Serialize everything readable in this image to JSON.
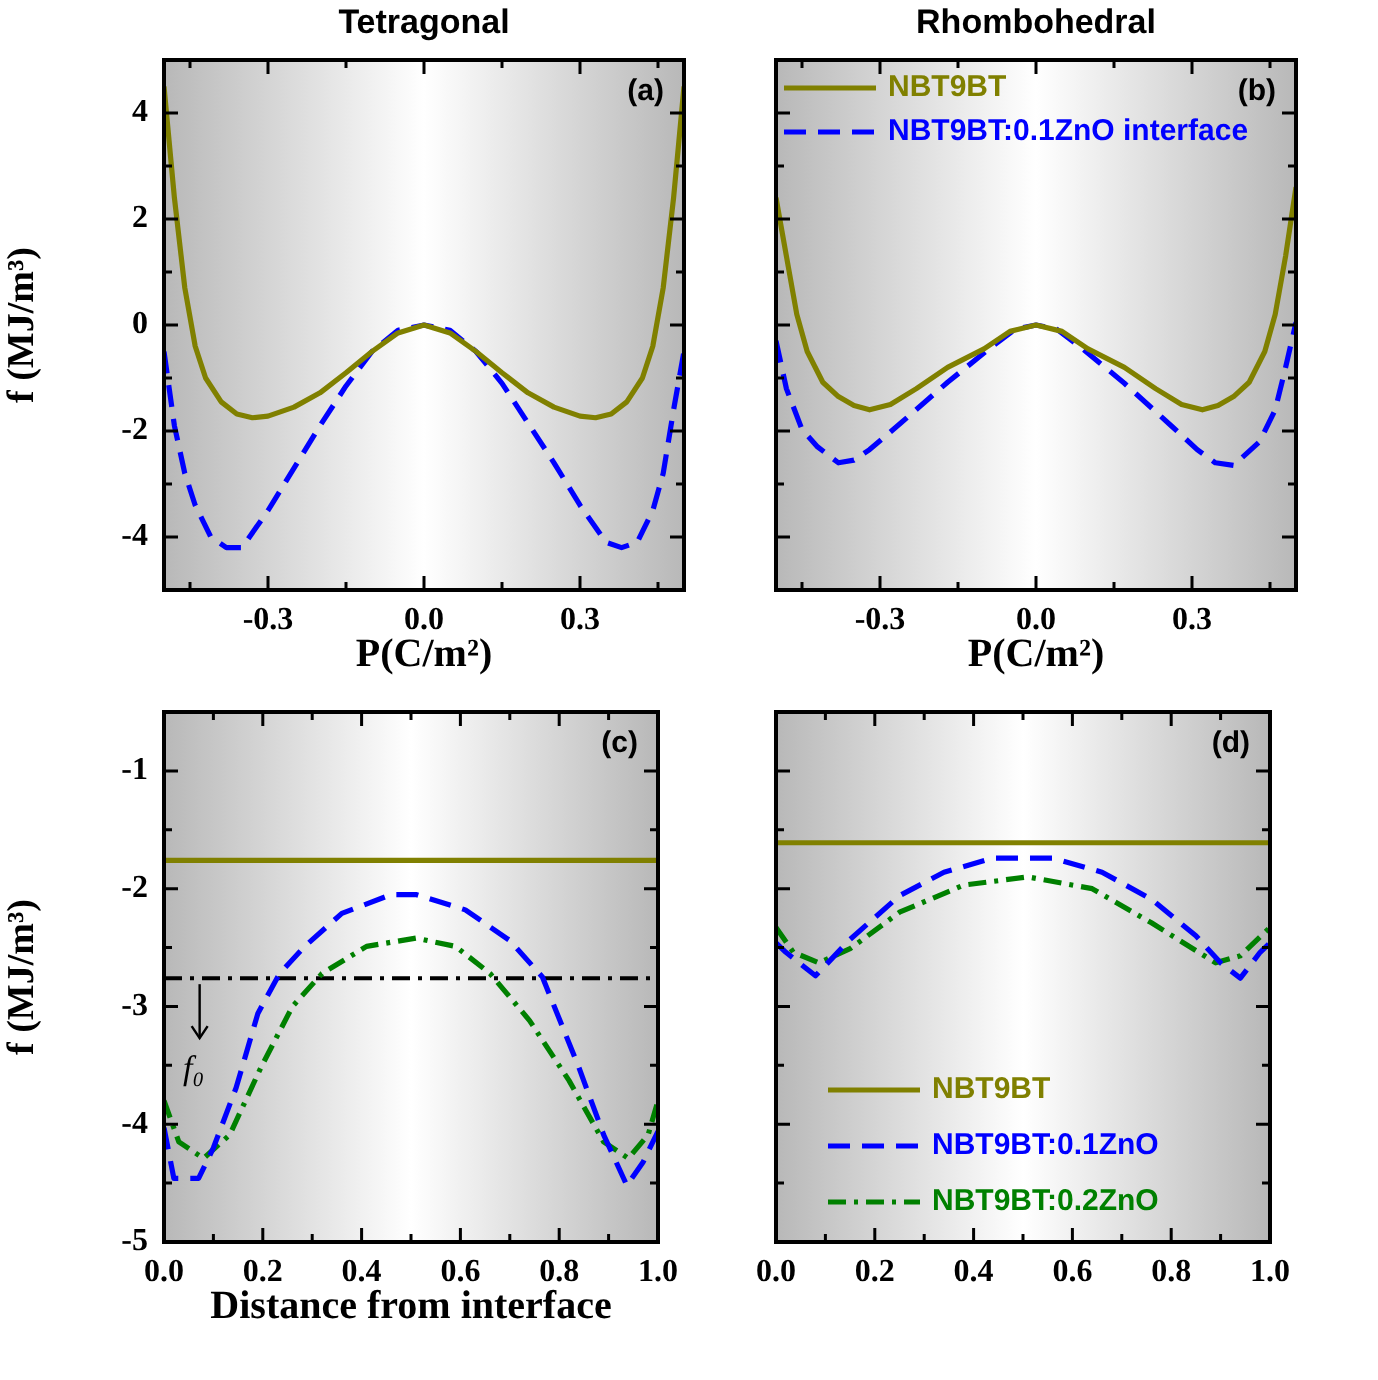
{
  "chart_data": [
    {
      "type": "line",
      "title": "Tetragonal",
      "xlabel": "P(C/m²)",
      "ylabel": "f (MJ/m³)",
      "annotations": [
        "(a)"
      ],
      "xlim": [
        -0.5,
        0.5
      ],
      "ylim": [
        -5,
        5
      ],
      "xticks": [
        {
          "value": -0.45,
          "label": null
        },
        -0.3,
        {
          "value": -0.15,
          "label": null
        },
        {
          "value": 0,
          "label": "0.0"
        },
        {
          "value": 0.15,
          "label": null
        },
        0.3,
        {
          "value": 0.45,
          "label": null
        }
      ],
      "yticks": [
        -4,
        {
          "value": -3,
          "label": null
        },
        -2,
        {
          "value": -1,
          "label": null
        },
        0,
        {
          "value": 1,
          "label": null
        },
        2,
        {
          "value": 3,
          "label": null
        },
        4
      ],
      "grid": false,
      "series": [
        {
          "color": "#808000",
          "line_style": "solid",
          "x": [
            -0.5,
            -0.48,
            -0.46,
            -0.44,
            -0.42,
            -0.39,
            -0.36,
            -0.33,
            -0.3,
            -0.25,
            -0.2,
            -0.15,
            -0.1,
            -0.05,
            0,
            0.05,
            0.1,
            0.15,
            0.2,
            0.25,
            0.3,
            0.33,
            0.36,
            0.39,
            0.42,
            0.44,
            0.46,
            0.48,
            0.5
          ],
          "values": [
            4.5,
            2.4,
            0.7,
            -0.4,
            -1.0,
            -1.45,
            -1.68,
            -1.75,
            -1.72,
            -1.55,
            -1.28,
            -0.9,
            -0.5,
            -0.15,
            0,
            -0.15,
            -0.5,
            -0.9,
            -1.28,
            -1.55,
            -1.72,
            -1.75,
            -1.68,
            -1.45,
            -1.0,
            -0.4,
            0.7,
            2.4,
            4.5
          ]
        },
        {
          "color": "#0000ff",
          "line_style": "dashed",
          "x": [
            -0.5,
            -0.48,
            -0.46,
            -0.44,
            -0.41,
            -0.38,
            -0.35,
            -0.3,
            -0.25,
            -0.2,
            -0.15,
            -0.1,
            -0.05,
            0,
            0.05,
            0.1,
            0.15,
            0.2,
            0.25,
            0.3,
            0.35,
            0.38,
            0.41,
            0.44,
            0.46,
            0.48,
            0.5
          ],
          "values": [
            -0.5,
            -1.9,
            -2.8,
            -3.4,
            -4.0,
            -4.2,
            -4.2,
            -3.5,
            -2.7,
            -1.9,
            -1.15,
            -0.5,
            -0.1,
            0,
            -0.1,
            -0.5,
            -1.1,
            -1.85,
            -2.6,
            -3.4,
            -4.1,
            -4.2,
            -4.1,
            -3.5,
            -2.8,
            -1.6,
            -0.5
          ]
        }
      ]
    },
    {
      "type": "line",
      "title": "Rhombohedral",
      "xlabel": "P(C/m²)",
      "annotations": [
        "(b)"
      ],
      "legend": "top left",
      "tick_labels": "x",
      "xlim": [
        -0.5,
        0.5
      ],
      "ylim": [
        -5,
        5
      ],
      "xticks": [
        {
          "value": -0.45,
          "label": null
        },
        -0.3,
        {
          "value": -0.15,
          "label": null
        },
        {
          "value": 0,
          "label": "0.0"
        },
        {
          "value": 0.15,
          "label": null
        },
        0.3,
        {
          "value": 0.45,
          "label": null
        }
      ],
      "yticks": [
        -4,
        {
          "value": -3,
          "label": null
        },
        -2,
        {
          "value": -1,
          "label": null
        },
        0,
        {
          "value": 1,
          "label": null
        },
        2,
        {
          "value": 3,
          "label": null
        },
        4
      ],
      "grid": false,
      "series": [
        {
          "name": "NBT9BT",
          "color": "#808000",
          "line_style": "solid",
          "x": [
            -0.5,
            -0.48,
            -0.46,
            -0.44,
            -0.41,
            -0.38,
            -0.35,
            -0.32,
            -0.28,
            -0.23,
            -0.17,
            -0.1,
            -0.05,
            0,
            0.05,
            0.1,
            0.17,
            0.23,
            0.28,
            0.32,
            0.35,
            0.38,
            0.41,
            0.44,
            0.46,
            0.48,
            0.5
          ],
          "values": [
            2.4,
            1.3,
            0.2,
            -0.5,
            -1.08,
            -1.35,
            -1.52,
            -1.6,
            -1.5,
            -1.2,
            -0.8,
            -0.45,
            -0.12,
            0,
            -0.12,
            -0.45,
            -0.8,
            -1.2,
            -1.5,
            -1.6,
            -1.52,
            -1.35,
            -1.08,
            -0.5,
            0.2,
            1.3,
            2.6
          ]
        },
        {
          "name": "NBT9BT:0.1ZnO interface",
          "color": "#0000ff",
          "line_style": "dashed",
          "x": [
            -0.5,
            -0.48,
            -0.45,
            -0.42,
            -0.38,
            -0.35,
            -0.32,
            -0.26,
            -0.17,
            -0.09,
            -0.04,
            0,
            0.04,
            0.09,
            0.17,
            0.26,
            0.31,
            0.345,
            0.38,
            0.43,
            0.46,
            0.48,
            0.5
          ],
          "values": [
            -0.3,
            -1.2,
            -1.97,
            -2.3,
            -2.6,
            -2.55,
            -2.35,
            -1.85,
            -1.08,
            -0.45,
            -0.08,
            0,
            -0.08,
            -0.45,
            -1.1,
            -1.9,
            -2.35,
            -2.6,
            -2.65,
            -2.2,
            -1.6,
            -0.8,
            0.05
          ]
        }
      ]
    },
    {
      "type": "line",
      "xlabel": "Distance from interface",
      "ylabel": "f (MJ/m³)",
      "annotations": [
        "(c)",
        {
          "text": "f₀",
          "x": 0.06,
          "y": -2.76
        }
      ],
      "xlim": [
        0,
        1
      ],
      "ylim": [
        -5,
        -0.5
      ],
      "xticks": [
        {
          "value": 0,
          "label": "0.0"
        },
        {
          "value": 0.1,
          "label": null
        },
        0.2,
        {
          "value": 0.3,
          "label": null
        },
        0.4,
        {
          "value": 0.5,
          "label": null
        },
        0.6,
        {
          "value": 0.7,
          "label": null
        },
        0.8,
        {
          "value": 0.9,
          "label": null
        },
        {
          "value": 1,
          "label": "1.0"
        }
      ],
      "yticks": [
        -5,
        {
          "value": -4.5,
          "label": null
        },
        -4,
        {
          "value": -3.5,
          "label": null
        },
        -3,
        {
          "value": -2.5,
          "label": null
        },
        -2,
        {
          "value": -1.5,
          "label": null
        },
        -1
      ],
      "grid": false,
      "ref_lines": [
        {
          "axis": "y",
          "value": -2.76,
          "color": "#000000",
          "line_style": "dashdot"
        }
      ],
      "series": [
        {
          "color": "#808000",
          "line_style": "solid",
          "x": [
            0,
            1
          ],
          "values": [
            -1.76,
            -1.76
          ]
        },
        {
          "color": "#0000ff",
          "line_style": "dashed",
          "x": [
            0,
            0.02,
            0.07,
            0.1,
            0.146,
            0.19,
            0.234,
            0.285,
            0.36,
            0.46,
            0.51,
            0.61,
            0.7,
            0.766,
            0.84,
            0.89,
            0.937,
            0.97,
            1
          ],
          "values": [
            -4.03,
            -4.46,
            -4.46,
            -4.2,
            -3.69,
            -3.06,
            -2.72,
            -2.49,
            -2.21,
            -2.05,
            -2.05,
            -2.18,
            -2.44,
            -2.75,
            -3.52,
            -4.09,
            -4.52,
            -4.32,
            -4.06
          ]
        },
        {
          "color": "#008000",
          "line_style": "dashdot",
          "x": [
            0,
            0.03,
            0.08,
            0.133,
            0.196,
            0.26,
            0.32,
            0.41,
            0.51,
            0.59,
            0.66,
            0.74,
            0.82,
            0.89,
            0.94,
            0.98,
            1
          ],
          "values": [
            -3.8,
            -4.15,
            -4.29,
            -4.09,
            -3.52,
            -3.0,
            -2.72,
            -2.49,
            -2.42,
            -2.49,
            -2.72,
            -3.12,
            -3.63,
            -4.15,
            -4.29,
            -4.09,
            -3.8
          ]
        }
      ]
    },
    {
      "type": "line",
      "annotations": [
        "(d)"
      ],
      "legend": "bottom left",
      "tick_labels": "x",
      "xlim": [
        0,
        1
      ],
      "ylim": [
        -5,
        -0.5
      ],
      "xticks": [
        {
          "value": 0,
          "label": "0.0"
        },
        {
          "value": 0.1,
          "label": null
        },
        0.2,
        {
          "value": 0.3,
          "label": null
        },
        0.4,
        {
          "value": 0.5,
          "label": null
        },
        0.6,
        {
          "value": 0.7,
          "label": null
        },
        0.8,
        {
          "value": 0.9,
          "label": null
        },
        {
          "value": 1,
          "label": "1.0"
        }
      ],
      "yticks": [
        -5,
        {
          "value": -4.5,
          "label": null
        },
        -4,
        {
          "value": -3.5,
          "label": null
        },
        -3,
        {
          "value": -2.5,
          "label": null
        },
        -2,
        {
          "value": -1.5,
          "label": null
        },
        -1
      ],
      "grid": false,
      "series": [
        {
          "name": "NBT9BT",
          "color": "#808000",
          "line_style": "solid",
          "x": [
            0,
            1
          ],
          "values": [
            -1.61,
            -1.61
          ]
        },
        {
          "name": "NBT9BT:0.1ZnO",
          "color": "#0000ff",
          "line_style": "dashed",
          "x": [
            0,
            0.02,
            0.08,
            0.15,
            0.25,
            0.34,
            0.44,
            0.56,
            0.66,
            0.76,
            0.85,
            0.9,
            0.94,
            0.98,
            1
          ],
          "values": [
            -2.46,
            -2.54,
            -2.74,
            -2.43,
            -2.06,
            -1.86,
            -1.74,
            -1.74,
            -1.86,
            -2.09,
            -2.4,
            -2.63,
            -2.76,
            -2.54,
            -2.46
          ]
        },
        {
          "name": "NBT9BT:0.2ZnO",
          "color": "#008000",
          "line_style": "dashdot",
          "x": [
            0,
            0.035,
            0.087,
            0.15,
            0.25,
            0.38,
            0.51,
            0.64,
            0.76,
            0.89,
            0.94,
            1
          ],
          "values": [
            -2.33,
            -2.54,
            -2.63,
            -2.51,
            -2.2,
            -1.97,
            -1.9,
            -2.0,
            -2.29,
            -2.63,
            -2.57,
            -2.33
          ]
        }
      ]
    }
  ]
}
